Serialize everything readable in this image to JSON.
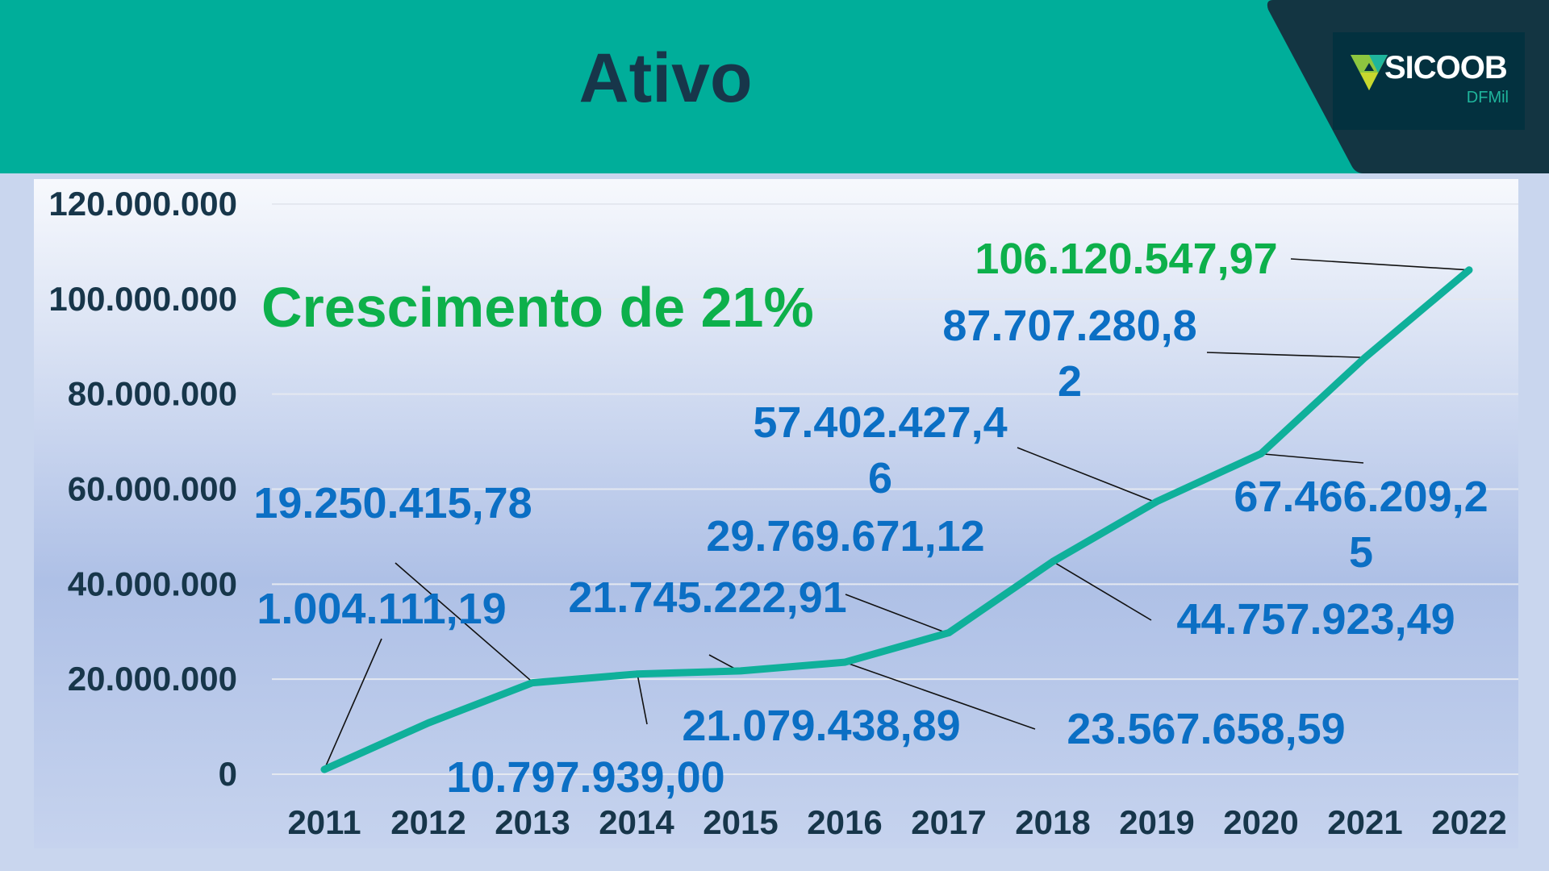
{
  "header": {
    "title": "Ativo"
  },
  "logo": {
    "name": "SICOOB",
    "sub": "DFMil"
  },
  "colors": {
    "header": "#00ae9a",
    "dark": "#133542",
    "line": "#0fb09a",
    "label": "#0b6fc4",
    "highlight": "#0db04b",
    "axis": "#17364a"
  },
  "chart_data": {
    "type": "line",
    "title": "Ativo",
    "annotation": "Crescimento de 21%",
    "xlabel": "",
    "ylabel": "",
    "categories": [
      "2011",
      "2012",
      "2013",
      "2014",
      "2015",
      "2016",
      "2017",
      "2018",
      "2019",
      "2020",
      "2021",
      "2022"
    ],
    "series": [
      {
        "name": "Ativo",
        "values": [
          1004111.19,
          10797939.0,
          19250415.78,
          21079438.89,
          21745222.91,
          23567658.59,
          29769671.12,
          44757923.49,
          57402427.46,
          67466209.25,
          87707280.82,
          106120547.97
        ]
      }
    ],
    "data_labels": [
      "1.004.111,19",
      "10.797.939,00",
      "19.250.415,78",
      "21.079.438,89",
      "21.745.222,91",
      "23.567.658,59",
      "29.769.671,12",
      "44.757.923,49",
      "57.402.427,46",
      "67.466.209,25",
      "87.707.280,82",
      "106.120.547,97"
    ],
    "y_ticks": [
      0,
      20000000,
      40000000,
      60000000,
      80000000,
      100000000,
      120000000
    ],
    "y_tick_labels": [
      "0",
      "20.000.000",
      "40.000.000",
      "60.000.000",
      "80.000.000",
      "100.000.000",
      "120.000.000"
    ],
    "ylim": [
      0,
      120000000
    ],
    "grid": true,
    "legend": "none"
  }
}
